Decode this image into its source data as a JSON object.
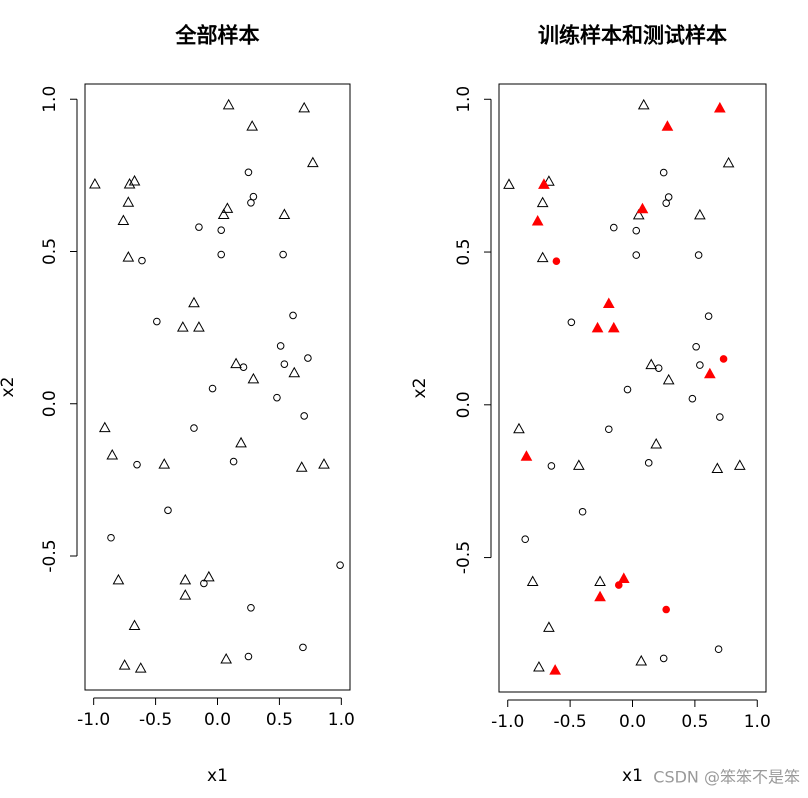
{
  "chart_data": [
    {
      "type": "scatter",
      "title": "全部样本",
      "xlabel": "x1",
      "ylabel": "x2",
      "xlim": [
        -1.07,
        1.07
      ],
      "ylim": [
        -0.94,
        1.05
      ],
      "xticks": [
        {
          "value": -1,
          "label": "-1.0"
        },
        -0.5,
        {
          "value": 0,
          "label": "0.0"
        },
        0.5,
        {
          "value": 1,
          "label": "1.0"
        }
      ],
      "yticks": [
        -0.5,
        {
          "value": 0,
          "label": "0.0"
        },
        0.5,
        {
          "value": 1,
          "label": "1.0"
        }
      ],
      "series": [
        {
          "marker": "triangle",
          "filled": false,
          "color": "#000000",
          "x": [
            -0.99,
            -0.71,
            -0.67,
            -0.72,
            -0.76,
            -0.72,
            0.09,
            0.7,
            0.28,
            0.77,
            0.08,
            0.05,
            0.54,
            -0.19,
            -0.28,
            -0.15,
            0.15,
            0.29,
            0.62,
            -0.91,
            -0.85,
            -0.43,
            0.19,
            0.68,
            0.86,
            -0.8,
            -0.26,
            -0.07,
            -0.26,
            -0.67,
            -0.75,
            -0.62,
            0.07
          ],
          "y": [
            0.72,
            0.72,
            0.73,
            0.66,
            0.6,
            0.48,
            0.98,
            0.97,
            0.91,
            0.79,
            0.64,
            0.62,
            0.62,
            0.33,
            0.25,
            0.25,
            0.13,
            0.08,
            0.1,
            -0.08,
            -0.17,
            -0.2,
            -0.13,
            -0.21,
            -0.2,
            -0.58,
            -0.58,
            -0.57,
            -0.63,
            -0.73,
            -0.86,
            -0.87,
            -0.84
          ]
        },
        {
          "marker": "circle",
          "filled": false,
          "color": "#000000",
          "x": [
            -0.61,
            0.25,
            0.29,
            0.27,
            -0.15,
            0.03,
            0.03,
            0.53,
            -0.49,
            0.61,
            0.51,
            0.54,
            0.73,
            0.21,
            -0.04,
            0.48,
            0.7,
            -0.19,
            0.13,
            -0.65,
            -0.4,
            -0.86,
            0.99,
            -0.11,
            0.27,
            0.25,
            0.69
          ],
          "y": [
            0.47,
            0.76,
            0.68,
            0.66,
            0.58,
            0.57,
            0.49,
            0.49,
            0.27,
            0.29,
            0.19,
            0.13,
            0.15,
            0.12,
            0.05,
            0.02,
            -0.04,
            -0.08,
            -0.19,
            -0.2,
            -0.35,
            -0.44,
            -0.53,
            -0.59,
            -0.67,
            -0.83,
            -0.8
          ]
        }
      ]
    },
    {
      "type": "scatter",
      "title": "训练样本和测试样本",
      "xlabel": "x1",
      "ylabel": "x2",
      "xlim": [
        -1.07,
        1.07
      ],
      "ylim": [
        -0.94,
        1.05
      ],
      "xticks": [
        {
          "value": -1,
          "label": "-1.0"
        },
        -0.5,
        {
          "value": 0,
          "label": "0.0"
        },
        0.5,
        {
          "value": 1,
          "label": "1.0"
        }
      ],
      "yticks": [
        -0.5,
        {
          "value": 0,
          "label": "0.0"
        },
        0.5,
        {
          "value": 1,
          "label": "1.0"
        }
      ],
      "series": [
        {
          "marker": "triangle",
          "filled": false,
          "color": "#000000",
          "x": [
            -0.99,
            -0.67,
            -0.72,
            -0.72,
            0.09,
            0.77,
            0.05,
            0.54,
            0.15,
            0.29,
            -0.91,
            -0.43,
            0.19,
            0.68,
            0.86,
            -0.8,
            -0.26,
            -0.67,
            -0.75,
            0.07
          ],
          "y": [
            0.72,
            0.73,
            0.66,
            0.48,
            0.98,
            0.79,
            0.62,
            0.62,
            0.13,
            0.08,
            -0.08,
            -0.2,
            -0.13,
            -0.21,
            -0.2,
            -0.58,
            -0.58,
            -0.73,
            -0.86,
            -0.84
          ]
        },
        {
          "marker": "circle",
          "filled": false,
          "color": "#000000",
          "x": [
            0.25,
            0.29,
            0.27,
            -0.15,
            0.03,
            0.03,
            0.53,
            -0.49,
            0.61,
            0.51,
            0.54,
            0.21,
            -0.04,
            0.48,
            0.7,
            -0.19,
            0.13,
            -0.65,
            -0.4,
            -0.86,
            0.25,
            0.69
          ],
          "y": [
            0.76,
            0.68,
            0.66,
            0.58,
            0.57,
            0.49,
            0.49,
            0.27,
            0.29,
            0.19,
            0.13,
            0.12,
            0.05,
            0.02,
            -0.04,
            -0.08,
            -0.19,
            -0.2,
            -0.35,
            -0.44,
            -0.83,
            -0.8
          ]
        },
        {
          "marker": "triangle",
          "filled": true,
          "color": "#ff0000",
          "x": [
            -0.71,
            -0.76,
            0.7,
            0.28,
            0.08,
            -0.19,
            -0.28,
            -0.15,
            0.62,
            -0.85,
            -0.07,
            -0.26,
            -0.62
          ],
          "y": [
            0.72,
            0.6,
            0.97,
            0.91,
            0.64,
            0.33,
            0.25,
            0.25,
            0.1,
            -0.17,
            -0.57,
            -0.63,
            -0.87
          ]
        },
        {
          "marker": "circle",
          "filled": true,
          "color": "#ff0000",
          "x": [
            -0.61,
            0.73,
            -0.11,
            0.27
          ],
          "y": [
            0.47,
            0.15,
            -0.59,
            -0.67
          ]
        }
      ]
    }
  ],
  "watermark": "CSDN @笨笨不是笨"
}
